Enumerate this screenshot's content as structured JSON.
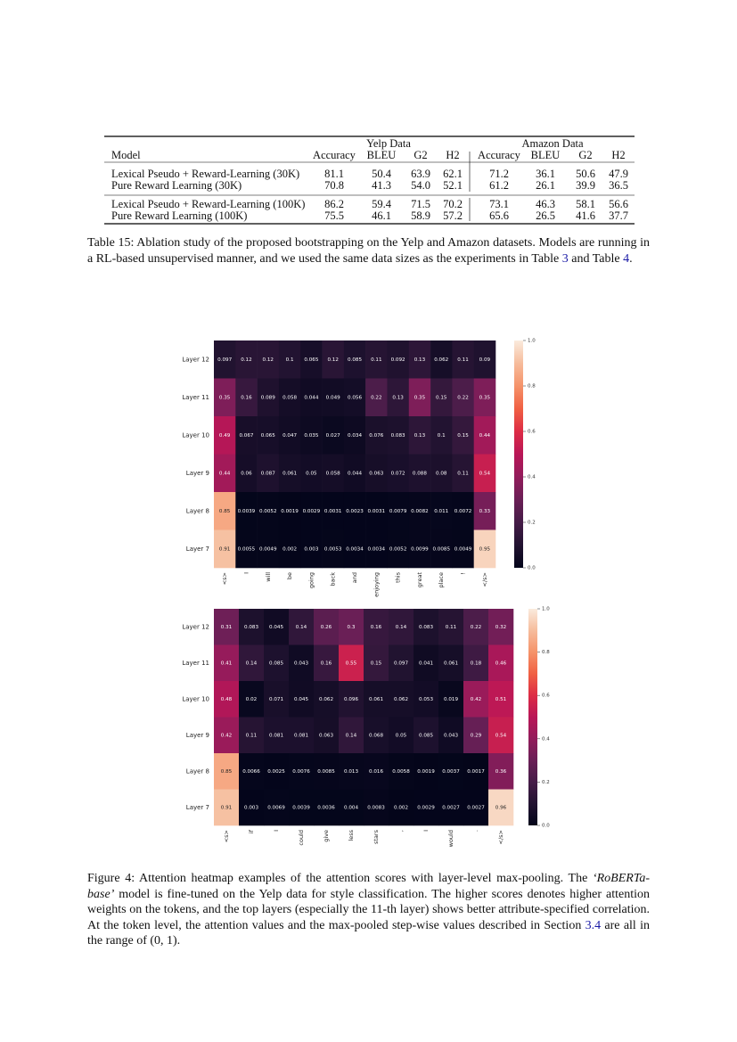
{
  "table": {
    "group_headers": [
      "Yelp Data",
      "Amazon Data"
    ],
    "columns": [
      "Model",
      "Accuracy",
      "BLEU",
      "G2",
      "H2",
      "Accuracy",
      "BLEU",
      "G2",
      "H2"
    ],
    "rows": [
      [
        "Lexical Pseudo + Reward-Learning (30K)",
        "81.1",
        "50.4",
        "63.9",
        "62.1",
        "71.2",
        "36.1",
        "50.6",
        "47.9"
      ],
      [
        "Pure Reward Learning (30K)",
        "70.8",
        "41.3",
        "54.0",
        "52.1",
        "61.2",
        "26.1",
        "39.9",
        "36.5"
      ],
      [
        "Lexical Pseudo + Reward-Learning (100K)",
        "86.2",
        "59.4",
        "71.5",
        "70.2",
        "73.1",
        "46.3",
        "58.1",
        "56.6"
      ],
      [
        "Pure Reward Learning (100K)",
        "75.5",
        "46.1",
        "58.9",
        "57.2",
        "65.6",
        "26.5",
        "41.6",
        "37.7"
      ]
    ]
  },
  "table_caption": [
    "Table 15:  Ablation study of the proposed bootstrapping on the Yelp and Amazon datasets. Models are running in a RL-based unsupervised manner, and we used the same data sizes as the experiments in Table ",
    "3",
    " and Table ",
    "4",
    "."
  ],
  "chart_data": [
    {
      "type": "heatmap",
      "colormap": "rocket",
      "x": [
        "<s>",
        "I",
        "will",
        "be",
        "going",
        "back",
        "and",
        "enjoying",
        "this",
        "great",
        "place",
        "!",
        "</s>"
      ],
      "y": [
        "Layer 12",
        "Layer 11",
        "Layer 10",
        "Layer 9",
        "Layer 8",
        "Layer 7"
      ],
      "values": [
        [
          0.097,
          0.12,
          0.12,
          0.1,
          0.065,
          0.12,
          0.085,
          0.11,
          0.092,
          0.13,
          0.062,
          0.11,
          0.09
        ],
        [
          0.35,
          0.16,
          0.089,
          0.058,
          0.044,
          0.049,
          0.056,
          0.22,
          0.13,
          0.35,
          0.15,
          0.22,
          0.35
        ],
        [
          0.49,
          0.067,
          0.065,
          0.047,
          0.035,
          0.027,
          0.034,
          0.076,
          0.083,
          0.13,
          0.1,
          0.15,
          0.44
        ],
        [
          0.44,
          0.06,
          0.087,
          0.061,
          0.05,
          0.058,
          0.044,
          0.063,
          0.072,
          0.088,
          0.08,
          0.11,
          0.54
        ],
        [
          0.85,
          0.0039,
          0.0052,
          0.0019,
          0.0029,
          0.0031,
          0.0023,
          0.0031,
          0.0079,
          0.0082,
          0.011,
          0.0072,
          0.33
        ],
        [
          0.91,
          0.0055,
          0.0049,
          0.002,
          0.003,
          0.0053,
          0.0034,
          0.0034,
          0.0052,
          0.0099,
          0.0085,
          0.0049,
          0.95
        ]
      ],
      "clim": [
        0,
        1
      ],
      "cticks": [
        {
          "value": 0,
          "label": "0.0"
        },
        0.2,
        0.4,
        0.6,
        0.8,
        {
          "value": 1,
          "label": "1.0"
        }
      ]
    },
    {
      "type": "heatmap",
      "colormap": "rocket",
      "x": [
        "<s>",
        "if",
        "I",
        "could",
        "give",
        "less",
        "stars",
        ",",
        "I",
        "would",
        ".",
        "</s>"
      ],
      "y": [
        "Layer 12",
        "Layer 11",
        "Layer 10",
        "Layer 9",
        "Layer 8",
        "Layer 7"
      ],
      "values": [
        [
          0.31,
          0.083,
          0.045,
          0.14,
          0.26,
          0.3,
          0.16,
          0.14,
          0.083,
          0.11,
          0.22,
          0.32
        ],
        [
          0.41,
          0.14,
          0.085,
          0.043,
          0.16,
          0.55,
          0.15,
          0.097,
          0.041,
          0.061,
          0.18,
          0.46
        ],
        [
          0.48,
          0.02,
          0.071,
          0.045,
          0.062,
          0.096,
          0.061,
          0.062,
          0.053,
          0.019,
          0.42,
          0.51
        ],
        [
          0.42,
          0.11,
          0.081,
          0.081,
          0.063,
          0.14,
          0.068,
          0.05,
          0.085,
          0.043,
          0.29,
          0.54
        ],
        [
          0.85,
          0.0066,
          0.0025,
          0.0076,
          0.0085,
          0.013,
          0.016,
          0.0058,
          0.0019,
          0.0037,
          0.0017,
          0.36
        ],
        [
          0.91,
          0.003,
          0.0069,
          0.0039,
          0.0036,
          0.004,
          0.0083,
          0.002,
          0.0029,
          0.0027,
          0.0027,
          0.96
        ]
      ],
      "clim": [
        0,
        1
      ],
      "cticks": [
        {
          "value": 0,
          "label": "0.0"
        },
        0.2,
        0.4,
        0.6,
        0.8,
        {
          "value": 1,
          "label": "1.0"
        }
      ]
    }
  ],
  "figure_caption": [
    "Figure 4: Attention heatmap examples of the attention scores with layer-level max-pooling. The ",
    "‘RoBERTa-base’",
    " model is fine-tuned on the Yelp data for style classification. The higher scores denotes higher attention weights on the tokens, and the top layers (especially the 11-th layer) shows better attribute-specified correlation. At the token level, the attention values and the max-pooled step-wise values described in Section ",
    "3.4",
    " are all in the range of (0, 1)."
  ]
}
